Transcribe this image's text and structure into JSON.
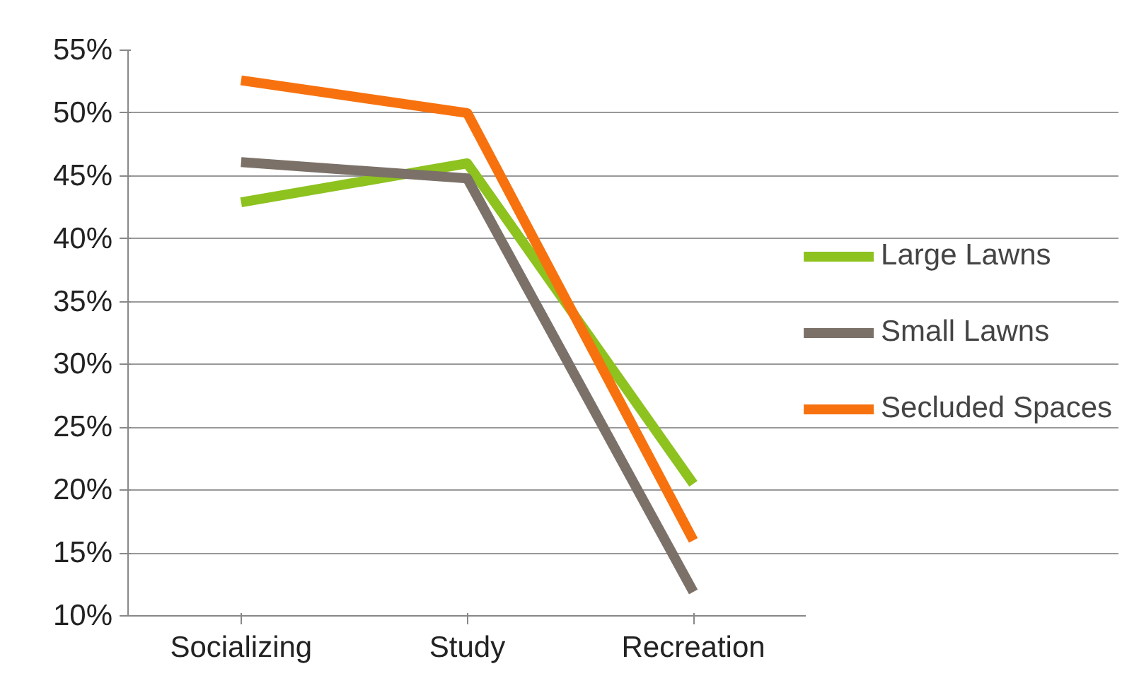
{
  "chart_data": {
    "type": "line",
    "categories": [
      "Socializing",
      "Study",
      "Recreation"
    ],
    "series": [
      {
        "name": "Large Lawns",
        "color": "#8dc21f",
        "values": [
          42.9,
          46.0,
          20.5
        ]
      },
      {
        "name": "Small Lawns",
        "color": "#7b7168",
        "values": [
          46.1,
          44.8,
          11.9
        ]
      },
      {
        "name": "Secluded Spaces",
        "color": "#f7720e",
        "values": [
          52.6,
          50.0,
          16.0
        ]
      }
    ],
    "ylim": [
      10,
      55
    ],
    "yticks": [
      {
        "value": 10,
        "label": "10%"
      },
      {
        "value": 15,
        "label": "15%"
      },
      {
        "value": 20,
        "label": "20%"
      },
      {
        "value": 25,
        "label": "25%"
      },
      {
        "value": 30,
        "label": "30%"
      },
      {
        "value": 35,
        "label": "35%"
      },
      {
        "value": 40,
        "label": "40%"
      },
      {
        "value": 45,
        "label": "45%"
      },
      {
        "value": 50,
        "label": "50%"
      },
      {
        "value": 55,
        "label": "55%"
      }
    ],
    "grid": "y",
    "legend": "right",
    "marker": "none",
    "line_style": "solid"
  }
}
